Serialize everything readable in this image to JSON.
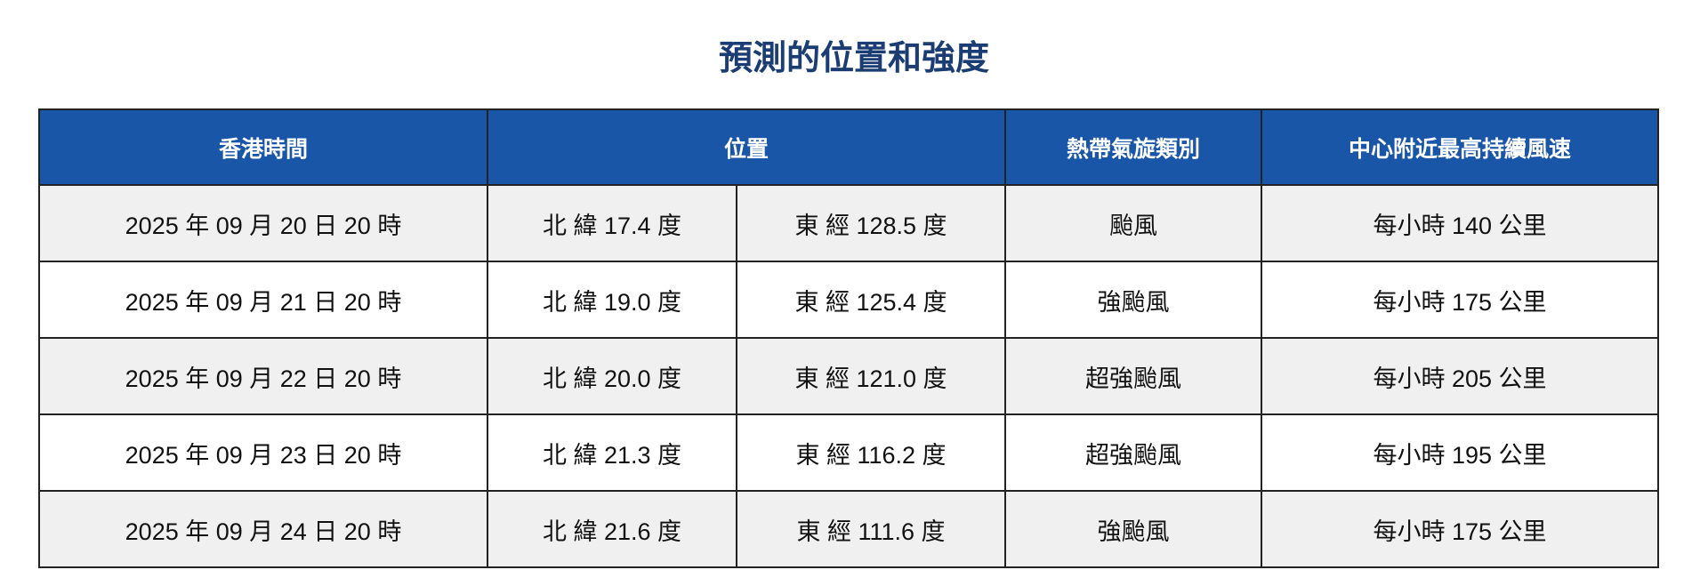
{
  "title": "預測的位置和強度",
  "header": {
    "time": "香港時間",
    "position": "位置",
    "category": "熱帶氣旋類別",
    "wind": "中心附近最高持續風速"
  },
  "colors": {
    "header_bg": "#1a56a8",
    "title": "#1b3d74",
    "row_alt": "#f0f0f0"
  },
  "rows": [
    {
      "time": "2025 年 09 月 20 日 20 時",
      "lat": "北 緯 17.4 度",
      "lon": "東 經 128.5 度",
      "category": "颱風",
      "wind": "每小時 140 公里"
    },
    {
      "time": "2025 年 09 月 21 日 20 時",
      "lat": "北 緯 19.0 度",
      "lon": "東 經 125.4 度",
      "category": "強颱風",
      "wind": "每小時 175 公里"
    },
    {
      "time": "2025 年 09 月 22 日 20 時",
      "lat": "北 緯 20.0 度",
      "lon": "東 經 121.0 度",
      "category": "超強颱風",
      "wind": "每小時 205 公里"
    },
    {
      "time": "2025 年 09 月 23 日 20 時",
      "lat": "北 緯 21.3 度",
      "lon": "東 經 116.2 度",
      "category": "超強颱風",
      "wind": "每小時 195 公里"
    },
    {
      "time": "2025 年 09 月 24 日 20 時",
      "lat": "北 緯 21.6 度",
      "lon": "東 經 111.6 度",
      "category": "強颱風",
      "wind": "每小時 175 公里"
    }
  ]
}
